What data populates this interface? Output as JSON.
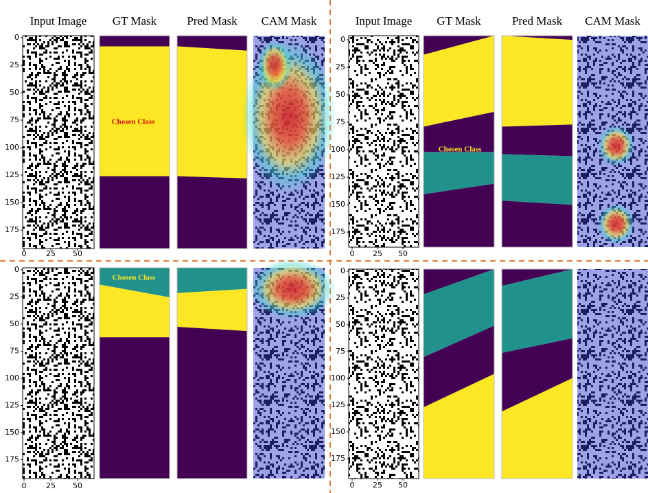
{
  "panels": [
    {
      "headers": [
        "Input Image",
        "GT Mask",
        "Pred Mask",
        "CAM Mask"
      ],
      "yticks": [
        0,
        25,
        50,
        75,
        100,
        125,
        150,
        175
      ],
      "xticks": [
        0,
        25,
        50
      ],
      "label": "Chosen Class"
    },
    {
      "headers": [
        "Input Image",
        "GT Mask",
        "Pred Mask",
        "CAM Mask"
      ],
      "yticks": [
        0,
        25,
        50,
        75,
        100,
        125,
        150,
        175
      ],
      "xticks": [
        0,
        25,
        50
      ],
      "label": "Chosen Class"
    },
    {
      "yticks": [
        0,
        25,
        50,
        75,
        100,
        125,
        150,
        175
      ],
      "xticks": [
        0,
        25,
        50
      ],
      "label": "Chosen Class"
    },
    {
      "yticks": [
        0,
        25,
        50,
        75,
        100,
        125,
        150,
        175
      ],
      "xticks": [
        0,
        25,
        50
      ]
    }
  ]
}
